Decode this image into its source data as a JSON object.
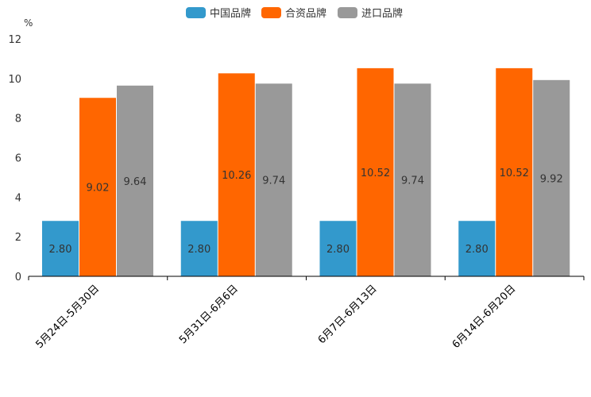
{
  "chart_data": {
    "type": "bar",
    "unit_label": "%",
    "categories": [
      "5月24日-5月30日",
      "5月31日-6月6日",
      "6月7日-6月13日",
      "6月14日-6月20日"
    ],
    "series": [
      {
        "name": "中国品牌",
        "color": "#3399cc",
        "values": [
          2.8,
          2.8,
          2.8,
          2.8
        ],
        "labels": [
          "2.80",
          "2.80",
          "2.80",
          "2.80"
        ]
      },
      {
        "name": "合资品牌",
        "color": "#ff6600",
        "values": [
          9.02,
          10.26,
          10.52,
          10.52
        ],
        "labels": [
          "9.02",
          "10.26",
          "10.52",
          "10.52"
        ]
      },
      {
        "name": "进口品牌",
        "color": "#999999",
        "values": [
          9.64,
          9.74,
          9.74,
          9.92
        ],
        "labels": [
          "9.64",
          "9.74",
          "9.74",
          "9.92"
        ]
      }
    ],
    "ylim": [
      0,
      12
    ],
    "yticks": [
      "0",
      "2",
      "4",
      "6",
      "8",
      "10",
      "12"
    ],
    "legend_position": "top-center"
  }
}
